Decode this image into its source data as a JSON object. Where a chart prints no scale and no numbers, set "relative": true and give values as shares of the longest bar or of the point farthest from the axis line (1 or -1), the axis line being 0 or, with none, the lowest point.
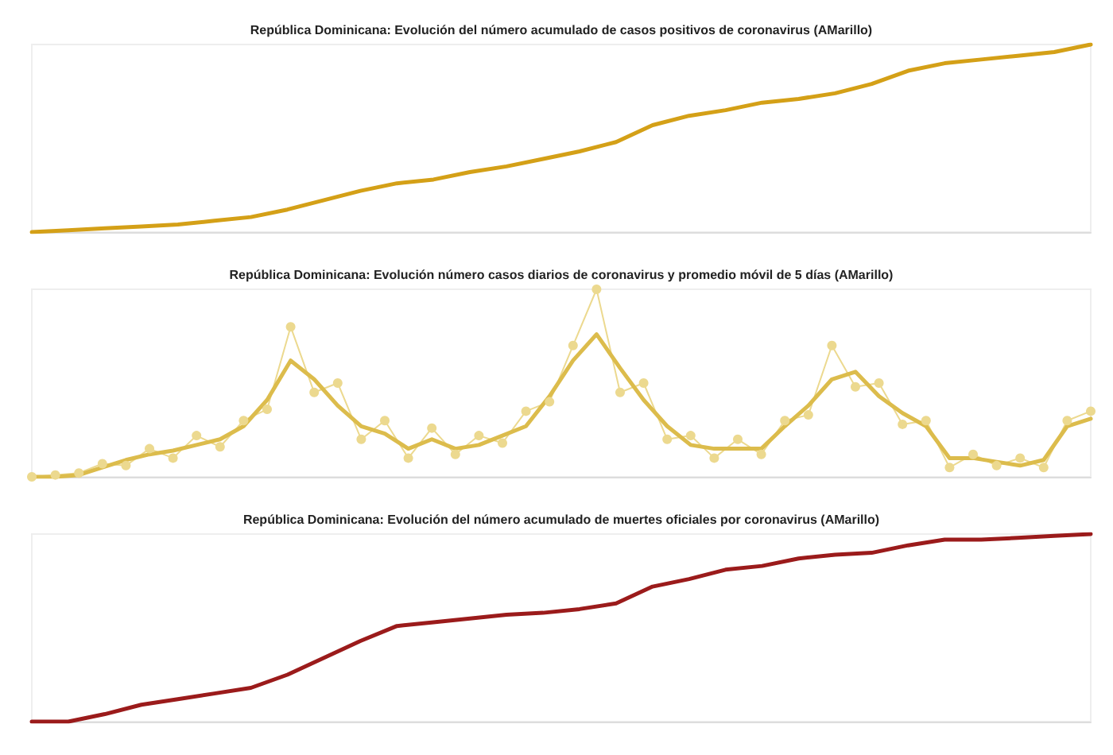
{
  "chart_data": [
    {
      "type": "line",
      "title": "República Dominicana: Evolución del número acumulado de casos positivos de coronavirus (AMarillo)",
      "relative": true,
      "marker": "none",
      "categories": [
        null,
        null,
        null,
        null,
        null,
        null,
        null,
        null,
        null,
        null,
        null,
        null,
        null,
        null,
        null,
        null,
        null,
        null,
        null,
        null,
        null,
        null,
        null,
        null,
        null,
        null,
        null,
        null,
        null,
        null
      ],
      "series": [
        {
          "color": "#d4a017",
          "values": [
            0,
            0.01,
            0.02,
            0.03,
            0.04,
            0.06,
            0.08,
            0.12,
            0.17,
            0.22,
            0.26,
            0.28,
            0.32,
            0.35,
            0.39,
            0.43,
            0.48,
            0.57,
            0.62,
            0.65,
            0.69,
            0.71,
            0.74,
            0.79,
            0.86,
            0.9,
            0.92,
            0.94,
            0.96,
            1
          ]
        }
      ]
    },
    {
      "type": "line",
      "title": "República Dominicana: Evolución número casos diarios de coronavirus y promedio móvil de 5 días (AMarillo)",
      "relative": true,
      "categories": [
        null,
        null,
        null,
        null,
        null,
        null,
        null,
        null,
        null,
        null,
        null,
        null,
        null,
        null,
        null,
        null,
        null,
        null,
        null,
        null,
        null,
        null,
        null,
        null,
        null,
        null,
        null,
        null,
        null,
        null,
        null,
        null,
        null,
        null,
        null,
        null,
        null,
        null,
        null,
        null,
        null,
        null,
        null,
        null,
        null,
        null
      ],
      "series": [
        {
          "color": "#ecd98f",
          "marker": "circle",
          "values": [
            0,
            0.01,
            0.02,
            0.07,
            0.06,
            0.15,
            0.1,
            0.22,
            0.16,
            0.3,
            0.36,
            0.8,
            0.45,
            0.5,
            0.2,
            0.3,
            0.1,
            0.26,
            0.12,
            0.22,
            0.18,
            0.35,
            0.4,
            0.7,
            1,
            0.45,
            0.5,
            0.2,
            0.22,
            0.1,
            0.2,
            0.12,
            0.3,
            0.33,
            0.7,
            0.48,
            0.5,
            0.28,
            0.3,
            0.05,
            0.12,
            0.06,
            0.1,
            0.05,
            0.3,
            0.35
          ]
        },
        {
          "color": "#dcbc4c",
          "marker": "none",
          "values": [
            0,
            0,
            0.01,
            0.05,
            0.09,
            0.12,
            0.14,
            0.17,
            0.2,
            0.27,
            0.41,
            0.62,
            0.52,
            0.38,
            0.27,
            0.23,
            0.15,
            0.2,
            0.15,
            0.17,
            0.22,
            0.27,
            0.43,
            0.62,
            0.76,
            0.58,
            0.41,
            0.27,
            0.17,
            0.15,
            0.15,
            0.15,
            0.27,
            0.38,
            0.52,
            0.56,
            0.43,
            0.34,
            0.27,
            0.1,
            0.1,
            0.08,
            0.06,
            0.09,
            0.27,
            0.31
          ]
        }
      ]
    },
    {
      "type": "line",
      "title": "República Dominicana: Evolución del número acumulado de muertes oficiales por coronavirus (AMarillo)",
      "relative": true,
      "marker": "none",
      "categories": [
        null,
        null,
        null,
        null,
        null,
        null,
        null,
        null,
        null,
        null,
        null,
        null,
        null,
        null,
        null,
        null,
        null,
        null,
        null,
        null,
        null,
        null,
        null,
        null,
        null,
        null,
        null,
        null,
        null,
        null
      ],
      "series": [
        {
          "color": "#9b1b1b",
          "values": [
            0,
            0,
            0.04,
            0.09,
            0.12,
            0.15,
            0.18,
            0.25,
            0.34,
            0.43,
            0.51,
            0.53,
            0.55,
            0.57,
            0.58,
            0.6,
            0.63,
            0.72,
            0.76,
            0.81,
            0.83,
            0.87,
            0.89,
            0.9,
            0.94,
            0.97,
            0.97,
            0.98,
            0.99,
            1
          ]
        }
      ]
    }
  ]
}
